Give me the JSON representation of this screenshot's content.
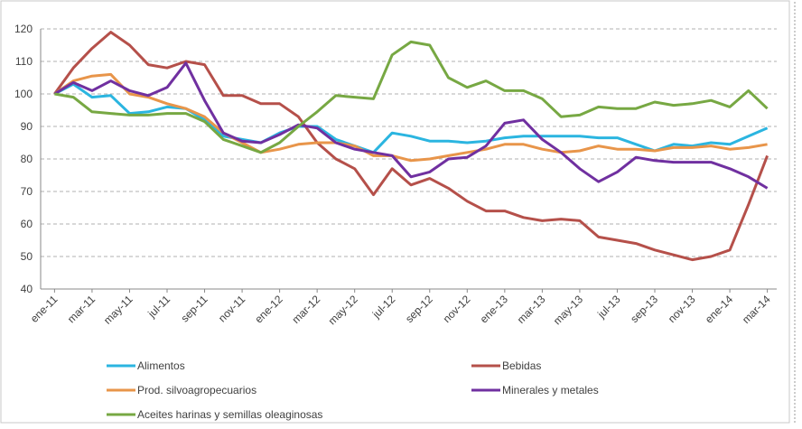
{
  "chart_data": {
    "type": "line",
    "categories": [
      "ene-11",
      null,
      "mar-11",
      null,
      "may-11",
      null,
      "jul-11",
      null,
      "sep-11",
      null,
      "nov-11",
      null,
      "ene-12",
      null,
      "mar-12",
      null,
      "may-12",
      null,
      "jul-12",
      null,
      "sep-12",
      null,
      "nov-12",
      null,
      "ene-13",
      null,
      "mar-13",
      null,
      "may-13",
      null,
      "jul-13",
      null,
      "sep-13",
      null,
      "nov-13",
      null,
      "ene-14",
      null,
      "mar-14"
    ],
    "series": [
      {
        "name": "Alimentos",
        "color": "#2bb5e0",
        "values": [
          100,
          103,
          99,
          99.5,
          94,
          94.5,
          96,
          95.5,
          92,
          87,
          86,
          85,
          88,
          90,
          90,
          86,
          84,
          82,
          88,
          87,
          85.5,
          85.5,
          85,
          85.5,
          86.5,
          87,
          87,
          87,
          87,
          86.5,
          86.5,
          84.5,
          82.5,
          84.5,
          84,
          85,
          84.5,
          87,
          89.5
        ]
      },
      {
        "name": "Bebidas",
        "color": "#b5504a",
        "values": [
          100,
          108,
          114,
          119,
          115,
          109,
          108,
          110,
          109,
          99.5,
          99.5,
          97,
          97,
          93,
          85,
          80,
          77,
          69,
          77,
          72,
          74,
          71,
          67,
          64,
          64,
          62,
          61,
          61.5,
          61,
          56,
          55,
          54,
          52,
          50.5,
          49,
          50,
          52,
          66,
          81
        ]
      },
      {
        "name": "Prod. silvoagropecuarios",
        "color": "#e8954a",
        "values": [
          100,
          104,
          105.5,
          106,
          100,
          99,
          97,
          95.5,
          93,
          88,
          85,
          82,
          83,
          84.5,
          85,
          85,
          84,
          81,
          81,
          79.5,
          80,
          81,
          82,
          83,
          84.5,
          84.5,
          83,
          82,
          82.5,
          84,
          83,
          83,
          82.5,
          83.5,
          83.5,
          84,
          83,
          83.5,
          84.5
        ]
      },
      {
        "name": "Minerales y metales",
        "color": "#7030a0",
        "values": [
          100,
          103.5,
          101,
          104,
          101,
          99.5,
          102,
          109.5,
          98,
          88,
          85.5,
          85,
          87.5,
          90.5,
          89.5,
          85,
          83,
          82,
          81,
          74.5,
          76,
          80,
          80.5,
          84,
          91,
          92,
          86,
          82,
          77,
          73,
          76,
          80.5,
          79.5,
          79,
          79,
          79,
          77,
          74.5,
          71
        ]
      },
      {
        "name": "Aceites harinas y semillas oleaginosas",
        "color": "#77a843",
        "values": [
          100,
          99,
          94.5,
          94,
          93.5,
          93.5,
          94,
          94,
          91.5,
          86,
          84,
          82,
          85,
          90,
          94.5,
          99.5,
          99,
          98.5,
          112,
          116,
          115,
          105,
          102,
          104,
          101,
          101,
          98.5,
          93,
          93.5,
          96,
          95.5,
          95.5,
          97.5,
          96.5,
          97,
          98,
          96,
          101,
          95.5
        ]
      }
    ],
    "ylim": [
      40,
      120
    ],
    "yticks": [
      40,
      50,
      60,
      70,
      80,
      90,
      100,
      110,
      120
    ],
    "grid": true
  }
}
